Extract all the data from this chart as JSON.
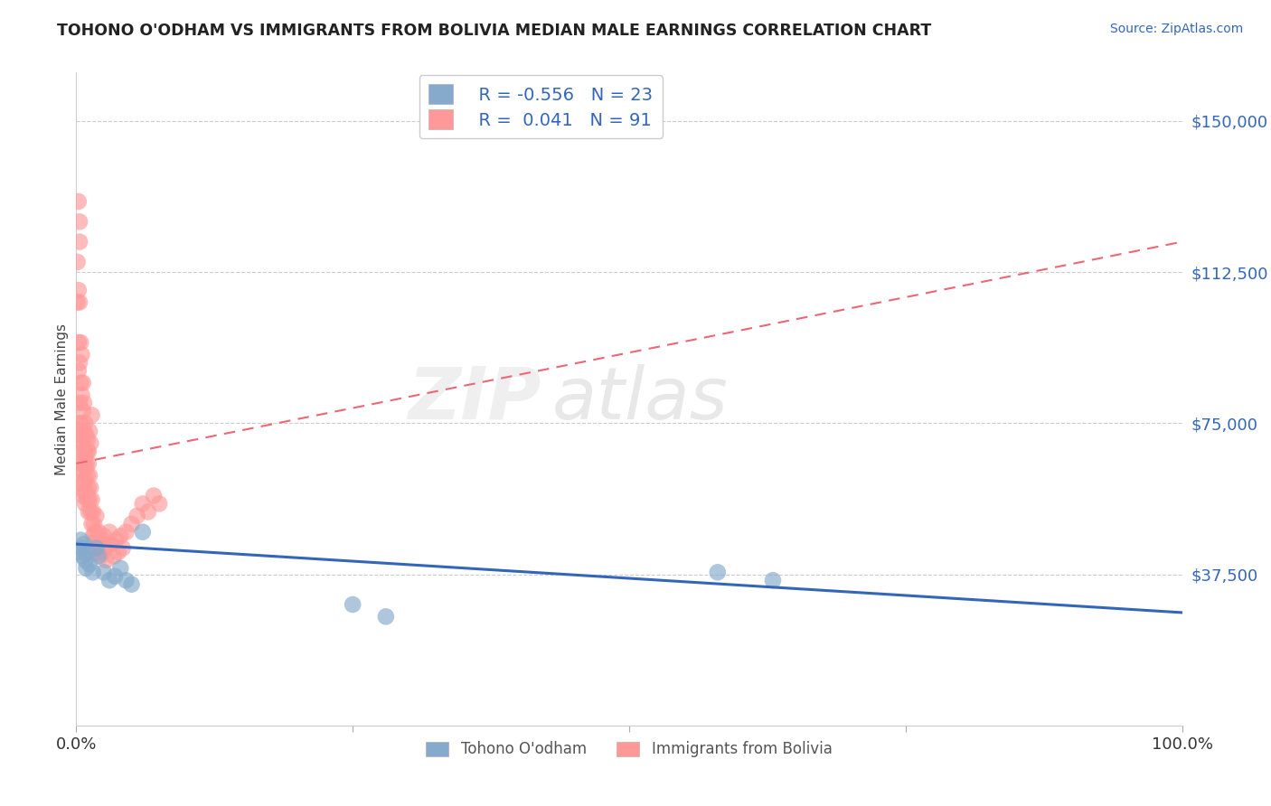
{
  "title": "TOHONO O'ODHAM VS IMMIGRANTS FROM BOLIVIA MEDIAN MALE EARNINGS CORRELATION CHART",
  "source": "Source: ZipAtlas.com",
  "ylabel": "Median Male Earnings",
  "legend_label1": "Tohono O'odham",
  "legend_label2": "Immigrants from Bolivia",
  "color_blue": "#85AACC",
  "color_pink": "#FF9999",
  "color_blue_line": "#3366BB",
  "color_pink_line": "#EE6677",
  "background_color": "#FFFFFF",
  "watermark_zip": "ZIP",
  "watermark_atlas": "atlas",
  "ylim_max": 162000,
  "xlim_max": 1.0,
  "ytick_vals": [
    0,
    37500,
    75000,
    112500,
    150000
  ],
  "ytick_labels": [
    "",
    "$37,500",
    "$75,000",
    "$112,500",
    "$150,000"
  ],
  "blue_x": [
    0.003,
    0.004,
    0.005,
    0.006,
    0.007,
    0.008,
    0.009,
    0.01,
    0.012,
    0.015,
    0.018,
    0.02,
    0.025,
    0.03,
    0.035,
    0.04,
    0.045,
    0.05,
    0.06,
    0.25,
    0.28,
    0.58,
    0.63
  ],
  "blue_y": [
    43000,
    46000,
    44000,
    42000,
    45000,
    41000,
    39000,
    43000,
    40000,
    38000,
    44000,
    42000,
    38000,
    36000,
    37000,
    39000,
    36000,
    35000,
    48000,
    30000,
    27000,
    38000,
    36000
  ],
  "pink_x": [
    0.001,
    0.001,
    0.002,
    0.002,
    0.002,
    0.003,
    0.003,
    0.003,
    0.003,
    0.004,
    0.004,
    0.004,
    0.004,
    0.005,
    0.005,
    0.005,
    0.005,
    0.005,
    0.006,
    0.006,
    0.006,
    0.006,
    0.006,
    0.007,
    0.007,
    0.007,
    0.007,
    0.008,
    0.008,
    0.008,
    0.008,
    0.009,
    0.009,
    0.009,
    0.01,
    0.01,
    0.01,
    0.011,
    0.011,
    0.011,
    0.012,
    0.012,
    0.013,
    0.013,
    0.014,
    0.014,
    0.015,
    0.015,
    0.016,
    0.016,
    0.017,
    0.018,
    0.018,
    0.019,
    0.02,
    0.021,
    0.022,
    0.023,
    0.024,
    0.025,
    0.026,
    0.027,
    0.028,
    0.03,
    0.032,
    0.034,
    0.036,
    0.038,
    0.04,
    0.042,
    0.045,
    0.05,
    0.055,
    0.06,
    0.065,
    0.07,
    0.075,
    0.003,
    0.004,
    0.005,
    0.006,
    0.007,
    0.008,
    0.009,
    0.01,
    0.011,
    0.012,
    0.013,
    0.014,
    0.002,
    0.003
  ],
  "pink_y": [
    115000,
    105000,
    108000,
    95000,
    88000,
    120000,
    105000,
    90000,
    80000,
    95000,
    85000,
    75000,
    70000,
    92000,
    82000,
    72000,
    65000,
    60000,
    85000,
    78000,
    70000,
    63000,
    57000,
    80000,
    73000,
    65000,
    58000,
    75000,
    68000,
    61000,
    55000,
    72000,
    65000,
    58000,
    68000,
    62000,
    56000,
    65000,
    59000,
    53000,
    62000,
    56000,
    59000,
    53000,
    56000,
    50000,
    53000,
    47000,
    50000,
    44000,
    48000,
    52000,
    46000,
    43000,
    48000,
    45000,
    42000,
    46000,
    43000,
    47000,
    44000,
    41000,
    45000,
    48000,
    45000,
    42000,
    46000,
    43000,
    47000,
    44000,
    48000,
    50000,
    52000,
    55000,
    53000,
    57000,
    55000,
    75000,
    72000,
    68000,
    63000,
    60000,
    67000,
    64000,
    71000,
    68000,
    73000,
    70000,
    77000,
    130000,
    125000
  ]
}
